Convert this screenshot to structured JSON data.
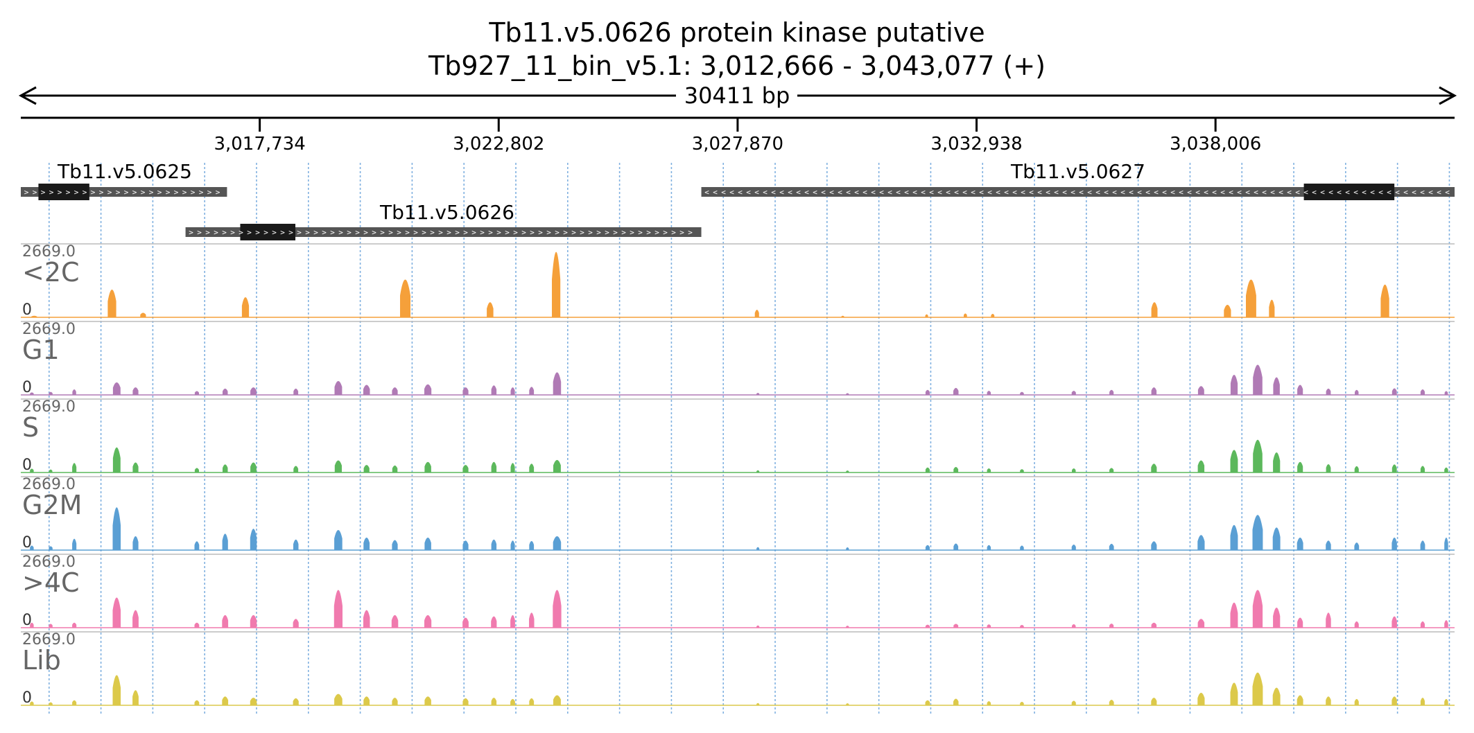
{
  "figure": {
    "title_line1": "Tb11.v5.0626  protein kinase  putative",
    "title_line2": "Tb927_11_bin_v5.1: 3,012,666 - 3,043,077 (+)",
    "span_label": "30411 bp"
  },
  "chart_data": {
    "type": "area",
    "region": {
      "chrom": "Tb927_11_bin_v5.1",
      "start": 3012666,
      "end": 3043077,
      "strand": "+"
    },
    "xaxis": {
      "ticks": [
        3017734,
        3022802,
        3027870,
        3032938,
        3038006
      ],
      "tick_labels": [
        "3,017,734",
        "3,022,802",
        "3,027,870",
        "3,032,938",
        "3,038,006"
      ]
    },
    "genes": [
      {
        "name": "Tb11.v5.0625",
        "start": 3012666,
        "end": 3017040,
        "strand": "+",
        "cds_start": 3013040,
        "cds_end": 3014120
      },
      {
        "name": "Tb11.v5.0626",
        "start": 3016160,
        "end": 3027100,
        "strand": "+",
        "cds_start": 3017320,
        "cds_end": 3018490
      },
      {
        "name": "Tb11.v5.0627",
        "start": 3027100,
        "end": 3043077,
        "strand": "-",
        "cds_start": 3039880,
        "cds_end": 3041800
      }
    ],
    "track_max_label": "2669.0",
    "track_min_label": "0",
    "ylim": [
      0,
      2669
    ],
    "series": [
      {
        "name": "<2C",
        "color": "#f5a03a",
        "peaks": [
          [
            3012950,
            120,
            60
          ],
          [
            3014600,
            180,
            1100
          ],
          [
            3015260,
            120,
            180
          ],
          [
            3017430,
            150,
            800
          ],
          [
            3020820,
            220,
            1500
          ],
          [
            3022620,
            140,
            600
          ],
          [
            3024020,
            180,
            2600
          ],
          [
            3028280,
            90,
            300
          ],
          [
            3030100,
            60,
            60
          ],
          [
            3031880,
            60,
            120
          ],
          [
            3032700,
            70,
            150
          ],
          [
            3033280,
            70,
            140
          ],
          [
            3036710,
            130,
            600
          ],
          [
            3038260,
            150,
            500
          ],
          [
            3038760,
            220,
            1500
          ],
          [
            3039200,
            120,
            700
          ],
          [
            3041600,
            180,
            1300
          ]
        ]
      },
      {
        "name": "G1",
        "color": "#b07ab5",
        "peaks": [
          [
            3012900,
            80,
            100
          ],
          [
            3013300,
            80,
            120
          ],
          [
            3013800,
            80,
            220
          ],
          [
            3014700,
            160,
            500
          ],
          [
            3015100,
            120,
            300
          ],
          [
            3016400,
            90,
            150
          ],
          [
            3017000,
            110,
            250
          ],
          [
            3017600,
            130,
            300
          ],
          [
            3018500,
            100,
            250
          ],
          [
            3019400,
            160,
            550
          ],
          [
            3020000,
            140,
            400
          ],
          [
            3020600,
            120,
            300
          ],
          [
            3021300,
            150,
            420
          ],
          [
            3022100,
            120,
            300
          ],
          [
            3022700,
            110,
            380
          ],
          [
            3023100,
            90,
            300
          ],
          [
            3023500,
            100,
            320
          ],
          [
            3024040,
            170,
            900
          ],
          [
            3028300,
            60,
            80
          ],
          [
            3030200,
            60,
            70
          ],
          [
            3031900,
            90,
            200
          ],
          [
            3032500,
            110,
            280
          ],
          [
            3033200,
            80,
            160
          ],
          [
            3033900,
            80,
            120
          ],
          [
            3035000,
            90,
            160
          ],
          [
            3035800,
            90,
            200
          ],
          [
            3036700,
            110,
            300
          ],
          [
            3037700,
            130,
            350
          ],
          [
            3038400,
            150,
            800
          ],
          [
            3038900,
            200,
            1200
          ],
          [
            3039300,
            140,
            700
          ],
          [
            3039800,
            120,
            400
          ],
          [
            3040400,
            100,
            250
          ],
          [
            3041000,
            80,
            200
          ],
          [
            3041800,
            100,
            260
          ],
          [
            3042400,
            90,
            220
          ],
          [
            3042900,
            70,
            150
          ]
        ]
      },
      {
        "name": "S",
        "color": "#5cb85c",
        "peaks": [
          [
            3012900,
            80,
            150
          ],
          [
            3013300,
            70,
            120
          ],
          [
            3013800,
            90,
            380
          ],
          [
            3014700,
            160,
            1000
          ],
          [
            3015100,
            120,
            400
          ],
          [
            3016400,
            90,
            180
          ],
          [
            3017000,
            110,
            320
          ],
          [
            3017600,
            130,
            400
          ],
          [
            3018500,
            100,
            260
          ],
          [
            3019400,
            150,
            480
          ],
          [
            3020000,
            120,
            300
          ],
          [
            3020600,
            110,
            280
          ],
          [
            3021300,
            140,
            420
          ],
          [
            3022100,
            120,
            300
          ],
          [
            3022700,
            110,
            420
          ],
          [
            3023100,
            90,
            380
          ],
          [
            3023500,
            100,
            350
          ],
          [
            3024040,
            160,
            500
          ],
          [
            3028300,
            60,
            90
          ],
          [
            3030200,
            60,
            80
          ],
          [
            3031900,
            90,
            200
          ],
          [
            3032500,
            100,
            220
          ],
          [
            3033200,
            80,
            160
          ],
          [
            3033900,
            80,
            130
          ],
          [
            3035000,
            80,
            160
          ],
          [
            3035800,
            90,
            180
          ],
          [
            3036700,
            120,
            350
          ],
          [
            3037700,
            140,
            480
          ],
          [
            3038400,
            160,
            900
          ],
          [
            3038900,
            200,
            1300
          ],
          [
            3039300,
            150,
            800
          ],
          [
            3039800,
            120,
            420
          ],
          [
            3040400,
            100,
            330
          ],
          [
            3041000,
            90,
            250
          ],
          [
            3041800,
            100,
            320
          ],
          [
            3042400,
            90,
            260
          ],
          [
            3042900,
            80,
            200
          ]
        ]
      },
      {
        "name": "G2M",
        "color": "#5a9fd4",
        "peaks": [
          [
            3012900,
            80,
            180
          ],
          [
            3013300,
            80,
            150
          ],
          [
            3013800,
            90,
            450
          ],
          [
            3014700,
            170,
            1700
          ],
          [
            3015100,
            120,
            550
          ],
          [
            3016400,
            100,
            350
          ],
          [
            3017000,
            120,
            650
          ],
          [
            3017600,
            140,
            850
          ],
          [
            3018500,
            110,
            420
          ],
          [
            3019400,
            170,
            800
          ],
          [
            3020000,
            130,
            500
          ],
          [
            3020600,
            120,
            400
          ],
          [
            3021300,
            140,
            500
          ],
          [
            3022100,
            120,
            380
          ],
          [
            3022700,
            110,
            420
          ],
          [
            3023100,
            90,
            380
          ],
          [
            3023500,
            100,
            360
          ],
          [
            3024040,
            170,
            550
          ],
          [
            3028300,
            60,
            120
          ],
          [
            3030200,
            60,
            110
          ],
          [
            3031900,
            90,
            200
          ],
          [
            3032500,
            100,
            260
          ],
          [
            3033200,
            80,
            200
          ],
          [
            3033900,
            80,
            180
          ],
          [
            3035000,
            90,
            220
          ],
          [
            3035800,
            100,
            250
          ],
          [
            3036700,
            120,
            350
          ],
          [
            3037700,
            150,
            600
          ],
          [
            3038400,
            160,
            1000
          ],
          [
            3038900,
            220,
            1400
          ],
          [
            3039300,
            160,
            900
          ],
          [
            3039800,
            130,
            500
          ],
          [
            3040400,
            110,
            380
          ],
          [
            3041000,
            100,
            300
          ],
          [
            3041800,
            110,
            500
          ],
          [
            3042400,
            100,
            380
          ],
          [
            3042900,
            80,
            500
          ]
        ]
      },
      {
        "name": ">4C",
        "color": "#f07aae",
        "peaks": [
          [
            3012900,
            80,
            200
          ],
          [
            3013300,
            80,
            150
          ],
          [
            3013800,
            90,
            200
          ],
          [
            3014700,
            170,
            1200
          ],
          [
            3015100,
            130,
            700
          ],
          [
            3016400,
            100,
            200
          ],
          [
            3017000,
            130,
            500
          ],
          [
            3017600,
            140,
            500
          ],
          [
            3018500,
            120,
            350
          ],
          [
            3019400,
            180,
            1500
          ],
          [
            3020000,
            140,
            700
          ],
          [
            3020600,
            140,
            500
          ],
          [
            3021300,
            150,
            500
          ],
          [
            3022100,
            130,
            400
          ],
          [
            3022700,
            120,
            450
          ],
          [
            3023100,
            100,
            500
          ],
          [
            3023500,
            110,
            600
          ],
          [
            3024040,
            180,
            1500
          ],
          [
            3028300,
            60,
            90
          ],
          [
            3030200,
            60,
            80
          ],
          [
            3031900,
            90,
            120
          ],
          [
            3032500,
            100,
            150
          ],
          [
            3033200,
            80,
            130
          ],
          [
            3033900,
            80,
            110
          ],
          [
            3035000,
            80,
            140
          ],
          [
            3035800,
            90,
            160
          ],
          [
            3036700,
            110,
            200
          ],
          [
            3037700,
            140,
            350
          ],
          [
            3038400,
            160,
            1000
          ],
          [
            3038900,
            210,
            1500
          ],
          [
            3039300,
            150,
            800
          ],
          [
            3039800,
            120,
            400
          ],
          [
            3040400,
            110,
            600
          ],
          [
            3041000,
            90,
            250
          ],
          [
            3041800,
            110,
            450
          ],
          [
            3042400,
            90,
            250
          ],
          [
            3042900,
            80,
            300
          ]
        ]
      },
      {
        "name": "Lib",
        "color": "#dcc94a",
        "peaks": [
          [
            3012900,
            80,
            150
          ],
          [
            3013300,
            80,
            120
          ],
          [
            3013800,
            90,
            200
          ],
          [
            3014700,
            170,
            1200
          ],
          [
            3015100,
            130,
            600
          ],
          [
            3016400,
            100,
            200
          ],
          [
            3017000,
            130,
            350
          ],
          [
            3017600,
            140,
            300
          ],
          [
            3018500,
            120,
            280
          ],
          [
            3019400,
            170,
            450
          ],
          [
            3020000,
            130,
            350
          ],
          [
            3020600,
            120,
            300
          ],
          [
            3021300,
            140,
            350
          ],
          [
            3022100,
            120,
            280
          ],
          [
            3022700,
            110,
            300
          ],
          [
            3023100,
            100,
            250
          ],
          [
            3023500,
            100,
            280
          ],
          [
            3024040,
            160,
            400
          ],
          [
            3028300,
            60,
            90
          ],
          [
            3030200,
            60,
            80
          ],
          [
            3031900,
            100,
            200
          ],
          [
            3032500,
            110,
            260
          ],
          [
            3033200,
            80,
            160
          ],
          [
            3033900,
            80,
            140
          ],
          [
            3035000,
            90,
            180
          ],
          [
            3035800,
            100,
            220
          ],
          [
            3036700,
            120,
            300
          ],
          [
            3037700,
            150,
            500
          ],
          [
            3038400,
            160,
            900
          ],
          [
            3038900,
            220,
            1300
          ],
          [
            3039300,
            160,
            700
          ],
          [
            3039800,
            130,
            400
          ],
          [
            3040400,
            110,
            350
          ],
          [
            3041000,
            90,
            250
          ],
          [
            3041800,
            110,
            350
          ],
          [
            3042400,
            90,
            300
          ],
          [
            3042900,
            80,
            250
          ]
        ]
      }
    ],
    "grid": true
  }
}
